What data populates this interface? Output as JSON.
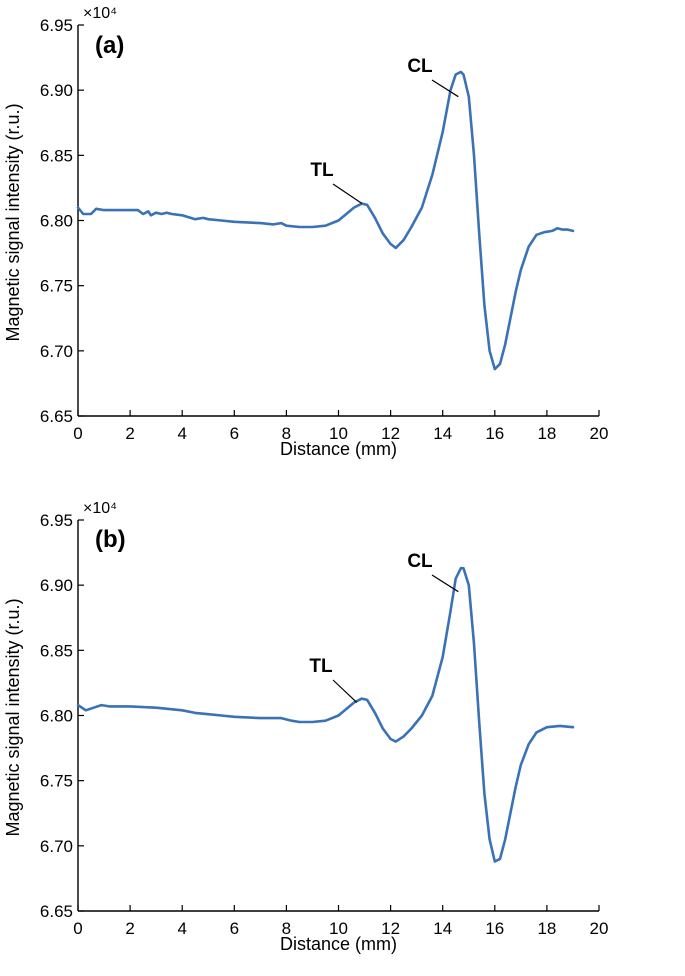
{
  "chart_data": [
    {
      "type": "line",
      "panel_label": "(a)",
      "xlabel": "Distance (mm)",
      "ylabel": "Magnetic signal intensity (r.u.)",
      "y_multiplier": "×10⁴",
      "xlim": [
        0,
        20
      ],
      "ylim": [
        6.65,
        6.95
      ],
      "x_ticks": [
        0,
        2,
        4,
        6,
        8,
        10,
        12,
        14,
        16,
        18,
        20
      ],
      "x_tick_labels": [
        "0",
        "2",
        "4",
        "6",
        "8",
        "10",
        "12",
        "14",
        "16",
        "18",
        "20"
      ],
      "y_ticks": [
        6.65,
        6.7,
        6.75,
        6.8,
        6.85,
        6.9,
        6.95
      ],
      "y_tick_labels": [
        "6.65",
        "6.70",
        "6.75",
        "6.80",
        "6.85",
        "6.90",
        "6.95"
      ],
      "grid": false,
      "line_color": "#3a72b5",
      "series": [
        {
          "x": [
            0,
            0.2,
            0.5,
            0.7,
            1,
            1.5,
            2,
            2.3,
            2.5,
            2.7,
            2.8,
            3,
            3.2,
            3.4,
            3.6,
            4,
            4.5,
            4.8,
            5,
            5.5,
            6,
            7,
            7.5,
            7.8,
            8,
            8.5,
            9,
            9.5,
            10,
            10.3,
            10.6,
            10.9,
            11.1,
            11.4,
            11.7,
            12,
            12.2,
            12.5,
            12.8,
            13.2,
            13.6,
            14,
            14.3,
            14.5,
            14.7,
            14.8,
            15,
            15.2,
            15.4,
            15.6,
            15.8,
            16,
            16.2,
            16.4,
            16.6,
            16.8,
            17,
            17.3,
            17.6,
            17.9,
            18.2,
            18.4,
            18.6,
            18.8,
            19
          ],
          "y": [
            6.81,
            6.805,
            6.805,
            6.809,
            6.808,
            6.808,
            6.808,
            6.808,
            6.805,
            6.807,
            6.804,
            6.806,
            6.805,
            6.806,
            6.805,
            6.804,
            6.801,
            6.802,
            6.801,
            6.8,
            6.799,
            6.798,
            6.797,
            6.798,
            6.796,
            6.795,
            6.795,
            6.796,
            6.8,
            6.805,
            6.81,
            6.813,
            6.812,
            6.802,
            6.79,
            6.782,
            6.779,
            6.785,
            6.795,
            6.81,
            6.835,
            6.868,
            6.9,
            6.912,
            6.914,
            6.912,
            6.895,
            6.85,
            6.79,
            6.735,
            6.7,
            6.686,
            6.69,
            6.705,
            6.725,
            6.745,
            6.762,
            6.78,
            6.789,
            6.791,
            6.792,
            6.794,
            6.793,
            6.793,
            6.792
          ]
        }
      ],
      "annotations": [
        {
          "text": "TL",
          "x": 10.9,
          "y": 6.813
        },
        {
          "text": "CL",
          "x": 14.6,
          "y": 6.895
        }
      ]
    },
    {
      "type": "line",
      "panel_label": "(b)",
      "xlabel": "Distance (mm)",
      "ylabel": "Magnetic signal intensity (r.u.)",
      "y_multiplier": "×10⁴",
      "xlim": [
        0,
        20
      ],
      "ylim": [
        6.65,
        6.95
      ],
      "x_ticks": [
        0,
        2,
        4,
        6,
        8,
        10,
        12,
        14,
        16,
        18,
        20
      ],
      "x_tick_labels": [
        "0",
        "2",
        "4",
        "6",
        "8",
        "10",
        "12",
        "14",
        "16",
        "18",
        "20"
      ],
      "y_ticks": [
        6.65,
        6.7,
        6.75,
        6.8,
        6.85,
        6.9,
        6.95
      ],
      "y_tick_labels": [
        "6.65",
        "6.70",
        "6.75",
        "6.80",
        "6.85",
        "6.90",
        "6.95"
      ],
      "grid": false,
      "line_color": "#3a72b5",
      "series": [
        {
          "x": [
            0,
            0.3,
            0.6,
            0.9,
            1.2,
            2,
            3,
            4,
            4.5,
            5,
            5.5,
            6,
            7,
            7.8,
            8.2,
            8.5,
            9,
            9.5,
            10,
            10.3,
            10.6,
            10.9,
            11.1,
            11.4,
            11.7,
            12,
            12.2,
            12.5,
            12.8,
            13.2,
            13.6,
            14,
            14.3,
            14.5,
            14.7,
            14.8,
            15,
            15.2,
            15.4,
            15.6,
            15.8,
            16,
            16.2,
            16.4,
            16.6,
            16.8,
            17,
            17.3,
            17.6,
            18,
            18.5,
            19
          ],
          "y": [
            6.808,
            6.804,
            6.806,
            6.808,
            6.807,
            6.807,
            6.806,
            6.804,
            6.802,
            6.801,
            6.8,
            6.799,
            6.798,
            6.798,
            6.796,
            6.795,
            6.795,
            6.796,
            6.8,
            6.805,
            6.81,
            6.813,
            6.812,
            6.802,
            6.79,
            6.782,
            6.78,
            6.784,
            6.79,
            6.8,
            6.815,
            6.845,
            6.88,
            6.905,
            6.913,
            6.913,
            6.9,
            6.855,
            6.795,
            6.74,
            6.705,
            6.688,
            6.69,
            6.705,
            6.725,
            6.745,
            6.762,
            6.778,
            6.787,
            6.791,
            6.792,
            6.791
          ]
        }
      ],
      "annotations": [
        {
          "text": "TL",
          "x": 10.7,
          "y": 6.81
        },
        {
          "text": "CL",
          "x": 14.6,
          "y": 6.895
        }
      ]
    }
  ]
}
